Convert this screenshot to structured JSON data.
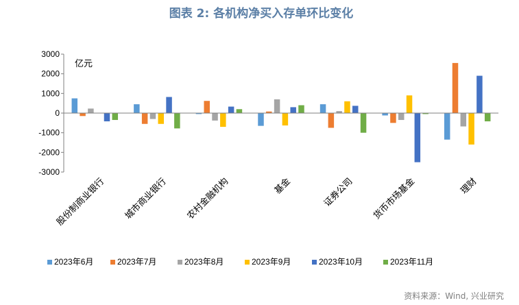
{
  "chart_data": {
    "type": "bar",
    "title": "图表 2:   各机构净买入存单环比变化",
    "unit": "亿元",
    "ylim": [
      -3000,
      3000
    ],
    "yticks": [
      "3000",
      "2000",
      "1000",
      "0",
      "-1000",
      "-2000",
      "-3000"
    ],
    "ytick_values": [
      3000,
      2000,
      1000,
      0,
      -1000,
      -2000,
      -3000
    ],
    "categories": [
      "股份制商业银行",
      "城市商业银行",
      "农村金融机构",
      "基金",
      "证券公司",
      "货币市场基金",
      "理财"
    ],
    "series": [
      {
        "name": "2023年6月",
        "color": "#5b9bd5",
        "values": [
          750,
          450,
          -50,
          -650,
          450,
          -120,
          -1350
        ]
      },
      {
        "name": "2023年7月",
        "color": "#ed7d31",
        "values": [
          -150,
          -550,
          620,
          80,
          -750,
          -500,
          2550
        ]
      },
      {
        "name": "2023年8月",
        "color": "#a5a5a5",
        "values": [
          230,
          -300,
          -380,
          700,
          100,
          -350,
          -680
        ]
      },
      {
        "name": "2023年9月",
        "color": "#ffc000",
        "values": [
          0,
          -550,
          -700,
          -630,
          600,
          900,
          -1600
        ]
      },
      {
        "name": "2023年10月",
        "color": "#4472c4",
        "values": [
          -420,
          820,
          330,
          300,
          370,
          -2500,
          1900
        ]
      },
      {
        "name": "2023年11月",
        "color": "#70ad47",
        "values": [
          -350,
          -780,
          200,
          400,
          -1000,
          -50,
          -420
        ]
      }
    ],
    "grid": false,
    "legend": "bottom"
  },
  "source": "资料来源：Wind, 兴业研究"
}
